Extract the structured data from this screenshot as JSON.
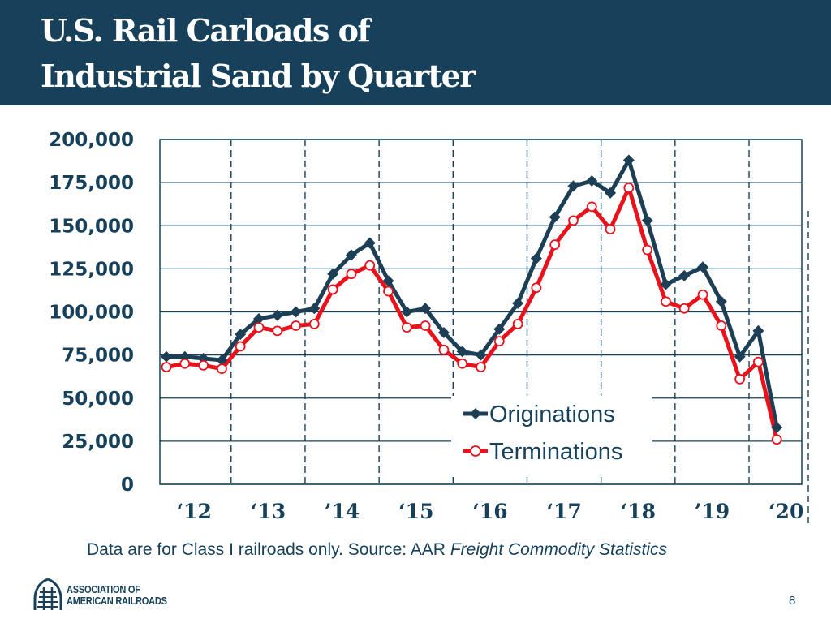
{
  "slide": {
    "title_line1": "U.S. Rail Carloads of",
    "title_line2": "Industrial Sand by Quarter",
    "source_prefix": "Data are for Class I railroads only.  Source:  AAR ",
    "source_italic": "Freight Commodity Statistics",
    "logo_line1": "ASSOCIATION OF",
    "logo_line2": "AMERICAN RAILROADS",
    "page_number": "8"
  },
  "colors": {
    "header_bg": "#17415a",
    "originations": "#1d3f55",
    "terminations": "#e8121c",
    "grid": "#17415a"
  },
  "chart_data": {
    "type": "line",
    "title": "U.S. Rail Carloads of Industrial Sand by Quarter",
    "xlabel": "",
    "ylabel": "",
    "ylim": [
      0,
      200000
    ],
    "yticks": [
      0,
      25000,
      50000,
      75000,
      100000,
      125000,
      150000,
      175000,
      200000
    ],
    "ytick_labels": [
      "0",
      "25,000",
      "50,000",
      "75,000",
      "100,000",
      "125,000",
      "150,000",
      "175,000",
      "200,000"
    ],
    "year_labels": [
      "‘12",
      "‘13",
      "’14",
      "‘15",
      "‘16",
      "‘17",
      "‘18",
      "’19",
      "‘20"
    ],
    "x": [
      "2012 Q1",
      "2012 Q2",
      "2012 Q3",
      "2012 Q4",
      "2013 Q1",
      "2013 Q2",
      "2013 Q3",
      "2013 Q4",
      "2014 Q1",
      "2014 Q2",
      "2014 Q3",
      "2014 Q4",
      "2015 Q1",
      "2015 Q2",
      "2015 Q3",
      "2015 Q4",
      "2016 Q1",
      "2016 Q2",
      "2016 Q3",
      "2016 Q4",
      "2017 Q1",
      "2017 Q2",
      "2017 Q3",
      "2017 Q4",
      "2018 Q1",
      "2018 Q2",
      "2018 Q3",
      "2018 Q4",
      "2019 Q1",
      "2019 Q2",
      "2019 Q3",
      "2019 Q4",
      "2020 Q1",
      "2020 Q2",
      "2020 Q3"
    ],
    "series": [
      {
        "name": "Originations",
        "marker": "diamond",
        "values": [
          74000,
          74000,
          73000,
          72000,
          87000,
          96000,
          98000,
          100000,
          102000,
          122000,
          133000,
          140000,
          118000,
          100000,
          102000,
          88000,
          77000,
          75000,
          90000,
          105000,
          131000,
          155000,
          173000,
          176000,
          169000,
          188000,
          153000,
          116000,
          121000,
          126000,
          106000,
          74000,
          89000,
          33000,
          null
        ]
      },
      {
        "name": "Terminations",
        "marker": "circle",
        "values": [
          68000,
          70000,
          69000,
          67000,
          80000,
          91000,
          89000,
          92000,
          93000,
          113000,
          122000,
          127000,
          112000,
          91000,
          92000,
          78000,
          70000,
          68000,
          83000,
          93000,
          114000,
          139000,
          153000,
          161000,
          148000,
          172000,
          136000,
          106000,
          102000,
          110000,
          92000,
          61000,
          71000,
          26000,
          null
        ]
      }
    ],
    "legend": "center-right"
  }
}
